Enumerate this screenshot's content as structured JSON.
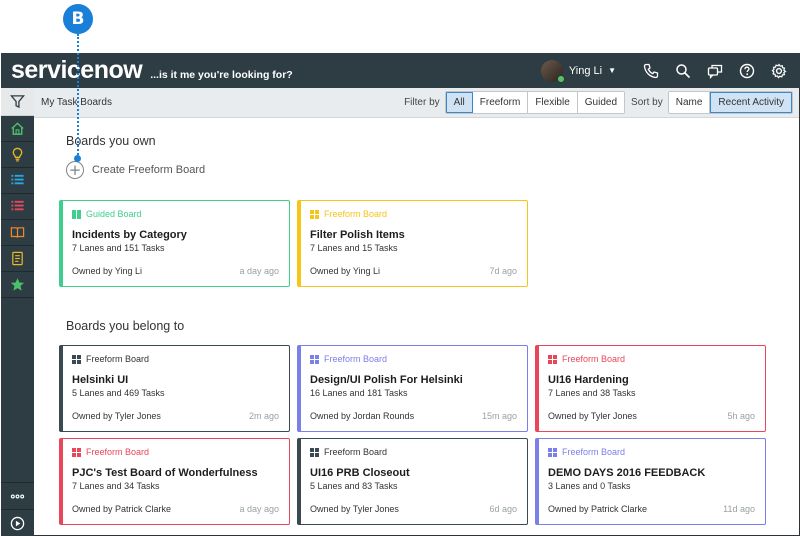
{
  "callout": {
    "letter": "B"
  },
  "header": {
    "logo_service": "service",
    "logo_now": "now",
    "tagline": "...is it me you're looking for?",
    "user_name": "Ying Li"
  },
  "toolbar": {
    "title": "My Task Boards",
    "filter_label": "Filter by",
    "filters": [
      "All",
      "Freeform",
      "Flexible",
      "Guided"
    ],
    "active_filter": "All",
    "sort_label": "Sort by",
    "sorts": [
      "Name",
      "Recent Activity"
    ],
    "active_sort": "Recent Activity"
  },
  "sections": {
    "own_title": "Boards you own",
    "create_label": "Create Freeform Board",
    "belong_title": "Boards you belong to"
  },
  "colors": {
    "guided": "#3ecf8e",
    "freeform_yellow": "#f5c518",
    "dark": "#3b4a52",
    "blue": "#7b7fe8",
    "red": "#e8475a"
  },
  "own_boards": [
    {
      "type": "Guided Board",
      "color": "#3ecf8e",
      "icon": "guided-board-icon",
      "title": "Incidents by Category",
      "lanes": "7",
      "tasks": "151",
      "owner": "Owned by Ying Li",
      "ago": "a day ago"
    },
    {
      "type": "Freeform Board",
      "color": "#f5c518",
      "icon": "freeform-board-icon",
      "title": "Filter Polish Items",
      "lanes": "7",
      "tasks": "15",
      "owner": "Owned by Ying Li",
      "ago": "7d ago"
    }
  ],
  "member_boards": [
    {
      "type": "Freeform Board",
      "color": "#3b4a52",
      "icon": "freeform-board-icon",
      "title": "Helsinki UI",
      "lanes": "5",
      "tasks": "469",
      "owner": "Owned by Tyler Jones",
      "ago": "2m ago"
    },
    {
      "type": "Freeform Board",
      "color": "#7b7fe8",
      "icon": "freeform-board-icon",
      "title": "Design/UI Polish For Helsinki",
      "lanes": "16",
      "tasks": "181",
      "owner": "Owned by Jordan Rounds",
      "ago": "15m ago"
    },
    {
      "type": "Freeform Board",
      "color": "#e8475a",
      "icon": "freeform-board-icon",
      "title": "UI16 Hardening",
      "lanes": "7",
      "tasks": "38",
      "owner": "Owned by Tyler Jones",
      "ago": "5h ago"
    },
    {
      "type": "Freeform Board",
      "color": "#e8475a",
      "icon": "freeform-board-icon",
      "title": "PJC's Test Board of Wonderfulness",
      "lanes": "7",
      "tasks": "34",
      "owner": "Owned by Patrick Clarke",
      "ago": "a day ago"
    },
    {
      "type": "Freeform Board",
      "color": "#3b4a52",
      "icon": "freeform-board-icon",
      "title": "UI16 PRB Closeout",
      "lanes": "5",
      "tasks": "83",
      "owner": "Owned by Tyler Jones",
      "ago": "6d ago"
    },
    {
      "type": "Freeform Board",
      "color": "#7b7fe8",
      "icon": "freeform-board-icon",
      "title": "DEMO DAYS 2016 FEEDBACK",
      "lanes": "3",
      "tasks": "0",
      "owner": "Owned by Patrick Clarke",
      "ago": "11d ago"
    }
  ],
  "labels": {
    "lanes_and": "Lanes and",
    "tasks": "Tasks"
  }
}
